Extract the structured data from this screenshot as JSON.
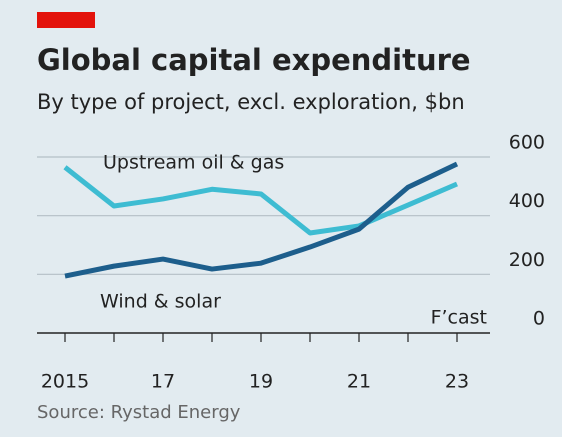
{
  "chart_data": {
    "type": "line",
    "title": "Global capital expenditure",
    "subtitle": "By type of project, excl. exploration, $bn",
    "source": "Source: Rystad Energy",
    "annotation": "F’cast",
    "x": [
      2015,
      2016,
      2017,
      2018,
      2019,
      2020,
      2021,
      2022,
      2023
    ],
    "xlim": [
      2015,
      2023
    ],
    "xticks": [
      {
        "value": 2015,
        "label": "2015"
      },
      {
        "value": 2017,
        "label": "17"
      },
      {
        "value": 2019,
        "label": "19"
      },
      {
        "value": 2021,
        "label": "21"
      },
      {
        "value": 2023,
        "label": "23"
      }
    ],
    "ylim": [
      0,
      600
    ],
    "yticks": [
      0,
      200,
      400,
      600
    ],
    "grid": true,
    "series": [
      {
        "name": "Upstream oil & gas",
        "color": "#3ebcd2",
        "values": [
          565,
          433,
          457,
          490,
          474,
          341,
          365,
          436,
          508
        ]
      },
      {
        "name": "Wind & solar",
        "color": "#1d5e8c",
        "values": [
          194,
          228,
          252,
          218,
          238,
          293,
          354,
          497,
          576
        ]
      }
    ]
  }
}
